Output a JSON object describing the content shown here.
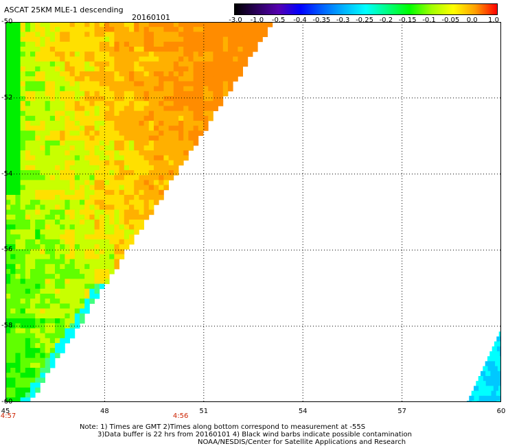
{
  "header": {
    "title": "ASCAT 25KM MLE-1 descending",
    "date": "20160101"
  },
  "colorbar": {
    "labels": [
      "-3.0",
      "-1.0",
      "-0.5",
      "-0.4",
      "-0.35",
      "-0.3",
      "-0.25",
      "-0.2",
      "-0.15",
      "-0.1",
      "-0.05",
      "0.0",
      "1.0"
    ],
    "colors": [
      "#000000",
      "#2a005a",
      "#5500b0",
      "#0000ff",
      "#0060ff",
      "#00b4ff",
      "#00ffff",
      "#00ff80",
      "#00ff00",
      "#a0ff00",
      "#ffff00",
      "#ffa000",
      "#ff0000"
    ]
  },
  "map": {
    "x_ticks": [
      "45",
      "48",
      "51",
      "54",
      "57",
      "60"
    ],
    "y_ticks": [
      "-50",
      "-52",
      "-54",
      "-56",
      "-58",
      "-60"
    ],
    "x_range": [
      45,
      60
    ],
    "y_range": [
      -60,
      -50
    ],
    "time_labels": [
      {
        "text": "4:57",
        "lon": 45
      },
      {
        "text": "4:56",
        "lon": 50.3
      }
    ]
  },
  "notes": {
    "line1": "Note: 1) Times are GMT 2)Times along bottom correspond to measurement at -55S",
    "line2": "3)Data buffer is 22 hrs from 20160101 4) Black wind barbs indicate possible contamination",
    "line3": "NOAA/NESDIS/Center for Satellite Applications and Research"
  }
}
